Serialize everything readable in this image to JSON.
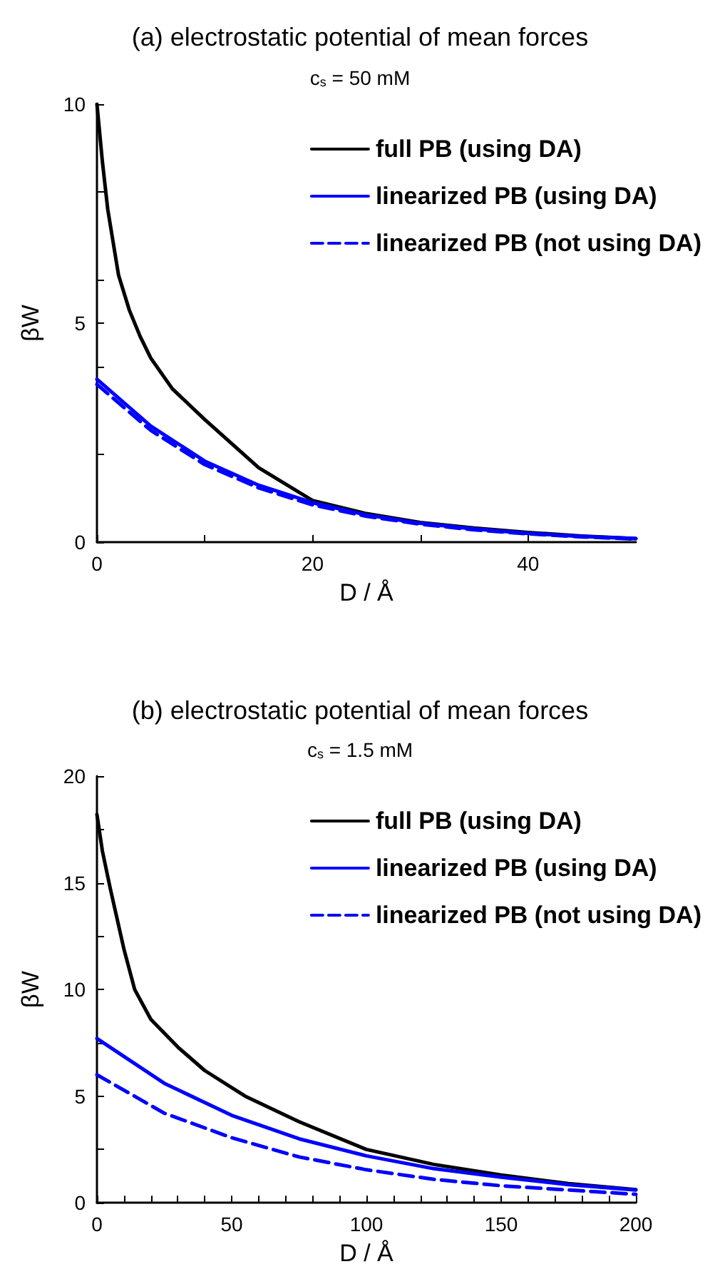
{
  "chart_data": [
    {
      "type": "line",
      "title": "(a) electrostatic potential of mean forces",
      "subtitle": "c$_{s}$ = 50 mM",
      "xlabel": "D / Å",
      "ylabel": "βW",
      "xlim": [
        0,
        50
      ],
      "xticks": [
        0,
        {
          "value": 10,
          "label": null
        },
        20,
        {
          "value": 30,
          "label": null
        },
        40
      ],
      "ylim": [
        0,
        10
      ],
      "yticks": [
        0,
        {
          "value": 2,
          "label": null
        },
        {
          "value": 4,
          "label": null
        },
        5,
        {
          "value": 6,
          "label": null
        },
        {
          "value": 8,
          "label": null
        },
        10
      ],
      "grid": false,
      "legend": "top right",
      "marker": "none",
      "series": [
        {
          "name": "full PB (using DA)",
          "color": "#000000",
          "line_style": "solid",
          "x": [
            0,
            0.5,
            1,
            2,
            3,
            4,
            5,
            7,
            10,
            15,
            20,
            25,
            30,
            35,
            40,
            45,
            50
          ],
          "values": [
            10,
            8.7,
            7.6,
            6.1,
            5.3,
            4.7,
            4.2,
            3.5,
            2.8,
            1.7,
            0.95,
            0.65,
            0.45,
            0.32,
            0.22,
            0.14,
            0.08
          ]
        },
        {
          "name": "linearized PB (using DA)",
          "color": "#0000ff",
          "line_style": "solid",
          "x": [
            0,
            5,
            10,
            15,
            20,
            25,
            30,
            35,
            40,
            45,
            50
          ],
          "values": [
            3.72,
            2.65,
            1.85,
            1.3,
            0.9,
            0.62,
            0.43,
            0.3,
            0.2,
            0.13,
            0.08
          ]
        },
        {
          "name": "linearized PB (not using DA)",
          "color": "#0000ff",
          "line_style": "dashed",
          "x": [
            0,
            5,
            10,
            15,
            20,
            25,
            30,
            35,
            40,
            45,
            50
          ],
          "values": [
            3.6,
            2.55,
            1.77,
            1.24,
            0.85,
            0.59,
            0.41,
            0.28,
            0.19,
            0.12,
            0.07
          ]
        }
      ]
    },
    {
      "type": "line",
      "title": "(b) electrostatic potential of mean forces",
      "subtitle": "c$_{s}$ = 1.5 mM",
      "xlabel": "D / Å",
      "ylabel": "βW",
      "xlim": [
        0,
        200
      ],
      "xticks": [
        0,
        {
          "value": 10,
          "label": null
        },
        {
          "value": 20,
          "label": null
        },
        {
          "value": 30,
          "label": null
        },
        {
          "value": 40,
          "label": null
        },
        50,
        {
          "value": 60,
          "label": null
        },
        {
          "value": 70,
          "label": null
        },
        {
          "value": 80,
          "label": null
        },
        {
          "value": 90,
          "label": null
        },
        100,
        {
          "value": 110,
          "label": null
        },
        {
          "value": 120,
          "label": null
        },
        {
          "value": 130,
          "label": null
        },
        {
          "value": 140,
          "label": null
        },
        150,
        {
          "value": 160,
          "label": null
        },
        {
          "value": 170,
          "label": null
        },
        {
          "value": 180,
          "label": null
        },
        {
          "value": 190,
          "label": null
        },
        200
      ],
      "ylim": [
        0,
        20
      ],
      "yticks": [
        0,
        {
          "value": 2.5,
          "label": null
        },
        5,
        {
          "value": 7.5,
          "label": null
        },
        10,
        {
          "value": 12.5,
          "label": null
        },
        15,
        {
          "value": 17.5,
          "label": null
        },
        20
      ],
      "grid": false,
      "legend": "top right",
      "marker": "none",
      "series": [
        {
          "name": "full PB (using DA)",
          "color": "#000000",
          "line_style": "solid",
          "x": [
            0,
            2,
            5,
            10,
            14,
            20,
            30,
            40,
            55,
            75,
            100,
            125,
            150,
            175,
            200
          ],
          "values": [
            18.2,
            16.5,
            14.7,
            11.9,
            10,
            8.6,
            7.3,
            6.2,
            5,
            3.8,
            2.5,
            1.8,
            1.3,
            0.9,
            0.62
          ]
        },
        {
          "name": "linearized PB (using DA)",
          "color": "#0000ff",
          "line_style": "solid",
          "x": [
            0,
            25,
            50,
            75,
            100,
            125,
            150,
            175,
            200
          ],
          "values": [
            7.7,
            5.6,
            4.1,
            3,
            2.2,
            1.6,
            1.2,
            0.85,
            0.6
          ]
        },
        {
          "name": "linearized PB (not using DA)",
          "color": "#0000ff",
          "line_style": "dashed",
          "x": [
            0,
            25,
            50,
            75,
            100,
            125,
            150,
            175,
            200
          ],
          "values": [
            6,
            4.2,
            3.05,
            2.15,
            1.55,
            1.1,
            0.8,
            0.6,
            0.4
          ]
        }
      ]
    }
  ]
}
